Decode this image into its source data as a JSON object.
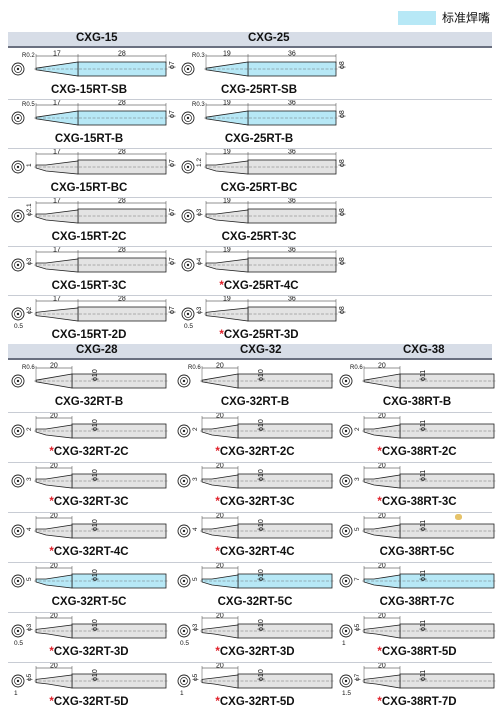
{
  "legend": {
    "color": "#b7e8f6",
    "text": "标准焊嘴"
  },
  "sections": [
    {
      "headers": [
        "CXG-15",
        "CXG-25"
      ],
      "rows": [
        [
          {
            "label": "CXG-15RT-SB",
            "star": false,
            "dims": {
              "r": "R0.2",
              "a": "17",
              "b": "28",
              "d": "ϕ7"
            },
            "highlight": true,
            "shape": "cone"
          },
          {
            "label": "CXG-25RT-SB",
            "star": false,
            "dims": {
              "r": "R0.3",
              "a": "19",
              "b": "36",
              "d": "ϕ8"
            },
            "highlight": true,
            "shape": "cone"
          }
        ],
        [
          {
            "label": "CXG-15RT-B",
            "star": false,
            "dims": {
              "r": "R0.5",
              "a": "17",
              "b": "28",
              "d": "ϕ7"
            },
            "highlight": true,
            "shape": "cone"
          },
          {
            "label": "CXG-25RT-B",
            "star": false,
            "dims": {
              "r": "R0.3",
              "a": "19",
              "b": "36",
              "d": "ϕ8"
            },
            "highlight": true,
            "shape": "cone"
          }
        ],
        [
          {
            "label": "CXG-15RT-BC",
            "star": false,
            "dims": {
              "s": "1",
              "a": "17",
              "b": "28",
              "d": "ϕ7"
            },
            "highlight": false,
            "shape": "bevel"
          },
          {
            "label": "CXG-25RT-BC",
            "star": false,
            "dims": {
              "s": "1.2",
              "a": "19",
              "b": "36",
              "d": "ϕ8"
            },
            "highlight": false,
            "shape": "bevel"
          }
        ],
        [
          {
            "label": "CXG-15RT-2C",
            "star": false,
            "dims": {
              "s": "ϕ2.1",
              "a": "17",
              "b": "28",
              "d": "ϕ7"
            },
            "highlight": false,
            "shape": "bevel"
          },
          {
            "label": "CXG-25RT-3C",
            "star": false,
            "dims": {
              "s": "ϕ3",
              "a": "19",
              "b": "36",
              "d": "ϕ8"
            },
            "highlight": false,
            "shape": "bevel"
          }
        ],
        [
          {
            "label": "CXG-15RT-3C",
            "star": false,
            "dims": {
              "s": "ϕ3",
              "a": "17",
              "b": "28",
              "d": "ϕ7"
            },
            "highlight": false,
            "shape": "bevel"
          },
          {
            "label": "CXG-25RT-4C",
            "star": true,
            "dims": {
              "s": "ϕ4",
              "a": "19",
              "b": "36",
              "d": "ϕ8"
            },
            "highlight": false,
            "shape": "bevel"
          }
        ],
        [
          {
            "label": "CXG-15RT-2D",
            "star": false,
            "dims": {
              "s": "ϕ2",
              "a": "17",
              "b": "28",
              "d": "ϕ7",
              "t": "0.5"
            },
            "highlight": false,
            "shape": "chisel"
          },
          {
            "label": "CXG-25RT-3D",
            "star": true,
            "dims": {
              "s": "ϕ3",
              "a": "19",
              "b": "36",
              "d": "ϕ8",
              "t": "0.5"
            },
            "highlight": false,
            "shape": "chisel"
          }
        ]
      ]
    },
    {
      "headers": [
        "CXG-28",
        "CXG-32",
        "CXG-38"
      ],
      "rows": [
        [
          {
            "label": "CXG-32RT-B",
            "star": false,
            "dims": {
              "r": "R0.6",
              "a": "20",
              "d": "ϕ10"
            },
            "highlight": false,
            "shape": "cone"
          },
          {
            "label": "CXG-32RT-B",
            "star": false,
            "dims": {
              "r": "R0.6",
              "a": "20",
              "d": "ϕ10"
            },
            "highlight": false,
            "shape": "cone"
          },
          {
            "label": "CXG-38RT-B",
            "star": false,
            "dims": {
              "r": "R0.6",
              "a": "20",
              "d": "ϕ11"
            },
            "highlight": false,
            "shape": "cone"
          }
        ],
        [
          {
            "label": "CXG-32RT-2C",
            "star": true,
            "dims": {
              "s": "2",
              "a": "20",
              "d": "ϕ10"
            },
            "highlight": false,
            "shape": "bevel"
          },
          {
            "label": "CXG-32RT-2C",
            "star": true,
            "dims": {
              "s": "2",
              "a": "20",
              "d": "ϕ10"
            },
            "highlight": false,
            "shape": "bevel"
          },
          {
            "label": "CXG-38RT-2C",
            "star": true,
            "dims": {
              "s": "2",
              "a": "20",
              "d": "ϕ11"
            },
            "highlight": false,
            "shape": "bevel"
          }
        ],
        [
          {
            "label": "CXG-32RT-3C",
            "star": true,
            "dims": {
              "s": "3",
              "a": "20",
              "d": "ϕ10"
            },
            "highlight": false,
            "shape": "bevel"
          },
          {
            "label": "CXG-32RT-3C",
            "star": true,
            "dims": {
              "s": "3",
              "a": "20",
              "d": "ϕ10"
            },
            "highlight": false,
            "shape": "bevel"
          },
          {
            "label": "CXG-38RT-3C",
            "star": true,
            "dims": {
              "s": "3",
              "a": "20",
              "d": "ϕ11"
            },
            "highlight": false,
            "shape": "bevel"
          }
        ],
        [
          {
            "label": "CXG-32RT-4C",
            "star": true,
            "dims": {
              "s": "4",
              "a": "20",
              "d": "ϕ10"
            },
            "highlight": false,
            "shape": "bevel"
          },
          {
            "label": "CXG-32RT-4C",
            "star": true,
            "dims": {
              "s": "4",
              "a": "20",
              "d": "ϕ10"
            },
            "highlight": false,
            "shape": "bevel"
          },
          {
            "label": "CXG-38RT-5C",
            "star": false,
            "dims": {
              "s": "5",
              "a": "20",
              "d": "ϕ11"
            },
            "highlight": false,
            "shape": "bevel"
          }
        ],
        [
          {
            "label": "CXG-32RT-5C",
            "star": false,
            "dims": {
              "s": "5",
              "a": "20",
              "d": "ϕ10"
            },
            "highlight": true,
            "shape": "bevel"
          },
          {
            "label": "CXG-32RT-5C",
            "star": false,
            "dims": {
              "s": "5",
              "a": "20",
              "d": "ϕ10"
            },
            "highlight": true,
            "shape": "bevel"
          },
          {
            "label": "CXG-38RT-7C",
            "star": false,
            "dims": {
              "s": "7",
              "a": "20",
              "d": "ϕ11"
            },
            "highlight": true,
            "shape": "bevel"
          }
        ],
        [
          {
            "label": "CXG-32RT-3D",
            "star": true,
            "dims": {
              "s": "ϕ3",
              "a": "20",
              "d": "ϕ10",
              "t": "0.5"
            },
            "highlight": false,
            "shape": "chisel"
          },
          {
            "label": "CXG-32RT-3D",
            "star": true,
            "dims": {
              "s": "ϕ3",
              "a": "20",
              "d": "ϕ10",
              "t": "0.5"
            },
            "highlight": false,
            "shape": "chisel"
          },
          {
            "label": "CXG-38RT-5D",
            "star": true,
            "dims": {
              "s": "ϕ5",
              "a": "20",
              "d": "ϕ11",
              "t": "1"
            },
            "highlight": false,
            "shape": "chisel"
          }
        ],
        [
          {
            "label": "CXG-32RT-5D",
            "star": true,
            "dims": {
              "s": "ϕ5",
              "a": "20",
              "d": "ϕ10",
              "t": "1"
            },
            "highlight": false,
            "shape": "chisel"
          },
          {
            "label": "CXG-32RT-5D",
            "star": true,
            "dims": {
              "s": "ϕ5",
              "a": "20",
              "d": "ϕ10",
              "t": "1"
            },
            "highlight": false,
            "shape": "chisel"
          },
          {
            "label": "CXG-38RT-7D",
            "star": true,
            "dims": {
              "s": "ϕ7",
              "a": "20",
              "d": "ϕ11",
              "t": "1.5"
            },
            "highlight": false,
            "shape": "chisel"
          }
        ]
      ]
    }
  ]
}
